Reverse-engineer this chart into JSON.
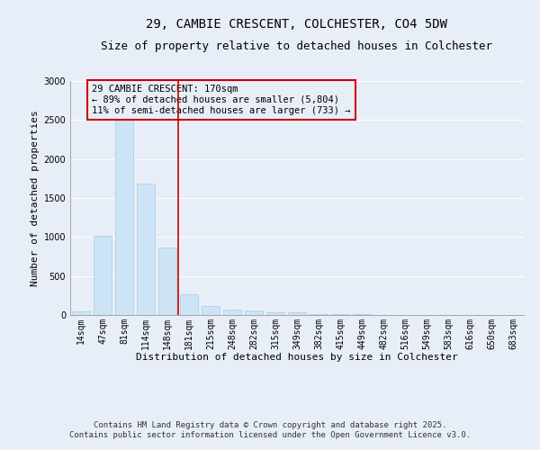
{
  "title_line1": "29, CAMBIE CRESCENT, COLCHESTER, CO4 5DW",
  "title_line2": "Size of property relative to detached houses in Colchester",
  "xlabel": "Distribution of detached houses by size in Colchester",
  "ylabel": "Number of detached properties",
  "categories": [
    "14sqm",
    "47sqm",
    "81sqm",
    "114sqm",
    "148sqm",
    "181sqm",
    "215sqm",
    "248sqm",
    "282sqm",
    "315sqm",
    "349sqm",
    "382sqm",
    "415sqm",
    "449sqm",
    "482sqm",
    "516sqm",
    "549sqm",
    "583sqm",
    "616sqm",
    "650sqm",
    "683sqm"
  ],
  "values": [
    50,
    1010,
    2510,
    1680,
    870,
    260,
    120,
    75,
    55,
    40,
    30,
    15,
    10,
    8,
    5,
    4,
    3,
    2,
    2,
    1,
    1
  ],
  "bar_color": "#cce4f5",
  "bar_edge_color": "#aacce0",
  "marker_index": 5,
  "marker_color": "#cc0000",
  "ylim": [
    0,
    3000
  ],
  "yticks": [
    0,
    500,
    1000,
    1500,
    2000,
    2500,
    3000
  ],
  "annotation_text": "29 CAMBIE CRESCENT: 170sqm\n← 89% of detached houses are smaller (5,804)\n11% of semi-detached houses are larger (733) →",
  "annotation_box_color": "#cc0000",
  "footer_line1": "Contains HM Land Registry data © Crown copyright and database right 2025.",
  "footer_line2": "Contains public sector information licensed under the Open Government Licence v3.0.",
  "background_color": "#e8eef8",
  "grid_color": "#ffffff",
  "title_fontsize": 10,
  "subtitle_fontsize": 9,
  "axis_label_fontsize": 8,
  "tick_fontsize": 7,
  "annotation_fontsize": 7.5,
  "footer_fontsize": 6.5
}
